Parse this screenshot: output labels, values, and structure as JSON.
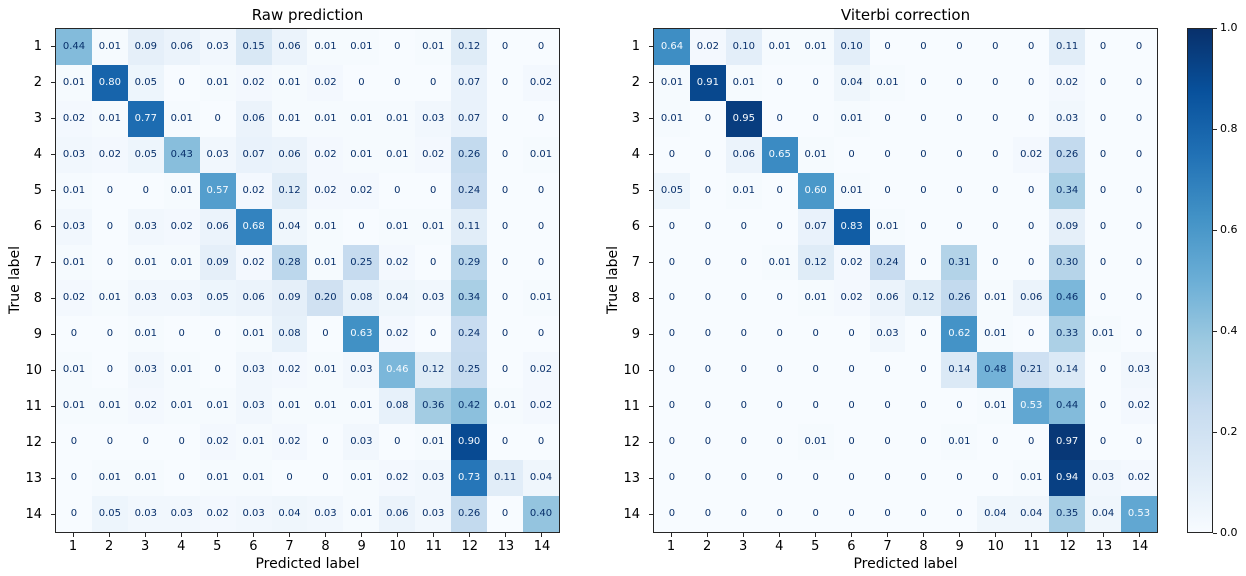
{
  "figure": {
    "background": "#ffffff",
    "spine_color": "#262626"
  },
  "colormap": {
    "name": "Blues",
    "anchors": [
      {
        "t": 0.0,
        "hex": "#f7fbff"
      },
      {
        "t": 0.125,
        "hex": "#deebf7"
      },
      {
        "t": 0.25,
        "hex": "#c6dbef"
      },
      {
        "t": 0.375,
        "hex": "#9ecae1"
      },
      {
        "t": 0.5,
        "hex": "#6baed6"
      },
      {
        "t": 0.625,
        "hex": "#4292c6"
      },
      {
        "t": 0.75,
        "hex": "#2171b5"
      },
      {
        "t": 0.875,
        "hex": "#08519c"
      },
      {
        "t": 1.0,
        "hex": "#08306b"
      }
    ],
    "text_dark": "#08306b",
    "text_light": "#f7fbff"
  },
  "chart_data": [
    {
      "type": "heatmap",
      "title": "Raw prediction",
      "xlabel": "Predicted label",
      "ylabel": "True label",
      "x_ticks": [
        "1",
        "2",
        "3",
        "4",
        "5",
        "6",
        "7",
        "8",
        "9",
        "10",
        "11",
        "12",
        "13",
        "14"
      ],
      "y_ticks": [
        "1",
        "2",
        "3",
        "4",
        "5",
        "6",
        "7",
        "8",
        "9",
        "10",
        "11",
        "12",
        "13",
        "14"
      ],
      "vmin": 0,
      "vmax": 1,
      "text_threshold": 0.45,
      "grid": false,
      "rows": [
        [
          "0.44",
          "0.01",
          "0.09",
          "0.06",
          "0.03",
          "0.15",
          "0.06",
          "0.01",
          "0.01",
          "0",
          "0.01",
          "0.12",
          "0",
          "0"
        ],
        [
          "0.01",
          "0.80",
          "0.05",
          "0",
          "0.01",
          "0.02",
          "0.01",
          "0.02",
          "0",
          "0",
          "0",
          "0.07",
          "0",
          "0.02"
        ],
        [
          "0.02",
          "0.01",
          "0.77",
          "0.01",
          "0",
          "0.06",
          "0.01",
          "0.01",
          "0.01",
          "0.01",
          "0.03",
          "0.07",
          "0",
          "0"
        ],
        [
          "0.03",
          "0.02",
          "0.05",
          "0.43",
          "0.03",
          "0.07",
          "0.06",
          "0.02",
          "0.01",
          "0.01",
          "0.02",
          "0.26",
          "0",
          "0.01"
        ],
        [
          "0.01",
          "0",
          "0",
          "0.01",
          "0.57",
          "0.02",
          "0.12",
          "0.02",
          "0.02",
          "0",
          "0",
          "0.24",
          "0",
          "0"
        ],
        [
          "0.03",
          "0",
          "0.03",
          "0.02",
          "0.06",
          "0.68",
          "0.04",
          "0.01",
          "0",
          "0.01",
          "0.01",
          "0.11",
          "0",
          "0"
        ],
        [
          "0.01",
          "0",
          "0.01",
          "0.01",
          "0.09",
          "0.02",
          "0.28",
          "0.01",
          "0.25",
          "0.02",
          "0",
          "0.29",
          "0",
          "0"
        ],
        [
          "0.02",
          "0.01",
          "0.03",
          "0.03",
          "0.05",
          "0.06",
          "0.09",
          "0.20",
          "0.08",
          "0.04",
          "0.03",
          "0.34",
          "0",
          "0.01"
        ],
        [
          "0",
          "0",
          "0.01",
          "0",
          "0",
          "0.01",
          "0.08",
          "0",
          "0.63",
          "0.02",
          "0",
          "0.24",
          "0",
          "0"
        ],
        [
          "0.01",
          "0",
          "0.03",
          "0.01",
          "0",
          "0.03",
          "0.02",
          "0.01",
          "0.03",
          "0.46",
          "0.12",
          "0.25",
          "0",
          "0.02"
        ],
        [
          "0.01",
          "0.01",
          "0.02",
          "0.01",
          "0.01",
          "0.03",
          "0.01",
          "0.01",
          "0.01",
          "0.08",
          "0.36",
          "0.42",
          "0.01",
          "0.02"
        ],
        [
          "0",
          "0",
          "0",
          "0",
          "0.02",
          "0.01",
          "0.02",
          "0",
          "0.03",
          "0",
          "0.01",
          "0.90",
          "0",
          "0"
        ],
        [
          "0",
          "0.01",
          "0.01",
          "0",
          "0.01",
          "0.01",
          "0",
          "0",
          "0.01",
          "0.02",
          "0.03",
          "0.73",
          "0.11",
          "0.04"
        ],
        [
          "0",
          "0.05",
          "0.03",
          "0.03",
          "0.02",
          "0.03",
          "0.04",
          "0.03",
          "0.01",
          "0.06",
          "0.03",
          "0.26",
          "0",
          "0.40"
        ]
      ]
    },
    {
      "type": "heatmap",
      "title": "Viterbi correction",
      "xlabel": "Predicted label",
      "ylabel": "True label",
      "x_ticks": [
        "1",
        "2",
        "3",
        "4",
        "5",
        "6",
        "7",
        "8",
        "9",
        "10",
        "11",
        "12",
        "13",
        "14"
      ],
      "y_ticks": [
        "1",
        "2",
        "3",
        "4",
        "5",
        "6",
        "7",
        "8",
        "9",
        "10",
        "11",
        "12",
        "13",
        "14"
      ],
      "vmin": 0,
      "vmax": 1,
      "text_threshold": 0.485,
      "grid": false,
      "rows": [
        [
          "0.64",
          "0.02",
          "0.10",
          "0.01",
          "0.01",
          "0.10",
          "0",
          "0",
          "0",
          "0",
          "0",
          "0.11",
          "0",
          "0"
        ],
        [
          "0.01",
          "0.91",
          "0.01",
          "0",
          "0",
          "0.04",
          "0.01",
          "0",
          "0",
          "0",
          "0",
          "0.02",
          "0",
          "0"
        ],
        [
          "0.01",
          "0",
          "0.95",
          "0",
          "0",
          "0.01",
          "0",
          "0",
          "0",
          "0",
          "0",
          "0.03",
          "0",
          "0"
        ],
        [
          "0",
          "0",
          "0.06",
          "0.65",
          "0.01",
          "0",
          "0",
          "0",
          "0",
          "0",
          "0.02",
          "0.26",
          "0",
          "0"
        ],
        [
          "0.05",
          "0",
          "0.01",
          "0",
          "0.60",
          "0.01",
          "0",
          "0",
          "0",
          "0",
          "0",
          "0.34",
          "0",
          "0"
        ],
        [
          "0",
          "0",
          "0",
          "0",
          "0.07",
          "0.83",
          "0.01",
          "0",
          "0",
          "0",
          "0",
          "0.09",
          "0",
          "0"
        ],
        [
          "0",
          "0",
          "0",
          "0.01",
          "0.12",
          "0.02",
          "0.24",
          "0",
          "0.31",
          "0",
          "0",
          "0.30",
          "0",
          "0"
        ],
        [
          "0",
          "0",
          "0",
          "0",
          "0.01",
          "0.02",
          "0.06",
          "0.12",
          "0.26",
          "0.01",
          "0.06",
          "0.46",
          "0",
          "0"
        ],
        [
          "0",
          "0",
          "0",
          "0",
          "0",
          "0",
          "0.03",
          "0",
          "0.62",
          "0.01",
          "0",
          "0.33",
          "0.01",
          "0"
        ],
        [
          "0",
          "0",
          "0",
          "0",
          "0",
          "0",
          "0",
          "0",
          "0.14",
          "0.48",
          "0.21",
          "0.14",
          "0",
          "0.03"
        ],
        [
          "0",
          "0",
          "0",
          "0",
          "0",
          "0",
          "0",
          "0",
          "0",
          "0.01",
          "0.53",
          "0.44",
          "0",
          "0.02"
        ],
        [
          "0",
          "0",
          "0",
          "0",
          "0.01",
          "0",
          "0",
          "0",
          "0.01",
          "0",
          "0",
          "0.97",
          "0",
          "0"
        ],
        [
          "0",
          "0",
          "0",
          "0",
          "0",
          "0",
          "0",
          "0",
          "0",
          "0",
          "0.01",
          "0.94",
          "0.03",
          "0.02"
        ],
        [
          "0",
          "0",
          "0",
          "0",
          "0",
          "0",
          "0",
          "0",
          "0",
          "0.04",
          "0.04",
          "0.35",
          "0.04",
          "0.53"
        ]
      ]
    }
  ],
  "colorbar": {
    "position": "right",
    "vmin": 0.0,
    "vmax": 1.0,
    "ticks": [
      "1.0",
      "0.8",
      "0.6",
      "0.4",
      "0.2",
      "0.0"
    ]
  }
}
